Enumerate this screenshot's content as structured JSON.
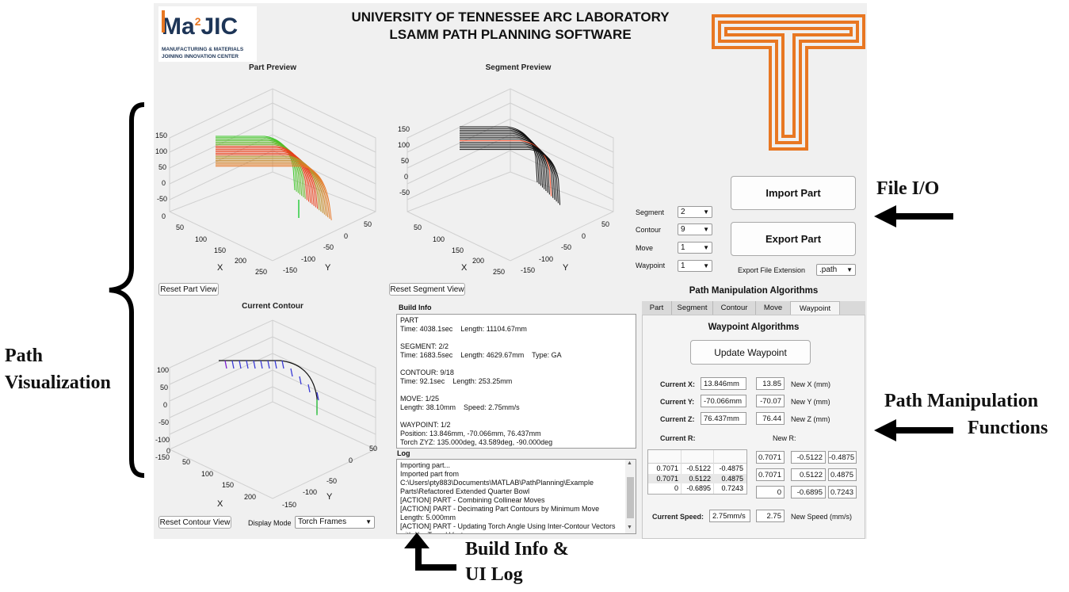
{
  "header": {
    "title_line1": "UNIVERSITY OF TENNESSEE ARC LABORATORY",
    "title_line2": "LSAMM PATH PLANNING SOFTWARE",
    "logo": {
      "main_text": "Ma",
      "superscript": "2",
      "suffix": "JIC",
      "tagline1": "MANUFACTURING & MATERIALS",
      "tagline2": "JOINING INNOVATION CENTER"
    },
    "brand_colors": {
      "orange": "#E87722",
      "navy": "#1d3557",
      "red": "#c0392b"
    }
  },
  "part_preview": {
    "title": "Part Preview",
    "z_ticks": [
      "150",
      "100",
      "50",
      "0",
      "-50"
    ],
    "extra_tick": "0",
    "x_ticks": [
      "50",
      "100",
      "150",
      "200",
      "250"
    ],
    "y_ticks": [
      "50",
      "0",
      "-50",
      "-100",
      "-150"
    ],
    "x_label": "X",
    "y_label": "Y",
    "reset_button": "Reset Part View"
  },
  "segment_preview": {
    "title": "Segment Preview",
    "z_ticks": [
      "150",
      "100",
      "50",
      "0",
      "-50"
    ],
    "x_ticks": [
      "50",
      "100",
      "150",
      "200",
      "250"
    ],
    "y_ticks": [
      "50",
      "0",
      "-50",
      "-100",
      "-150"
    ],
    "x_label": "X",
    "y_label": "Y",
    "reset_button": "Reset Segment View"
  },
  "current_contour": {
    "title": "Current Contour",
    "z_ticks": [
      "100",
      "50",
      "0",
      "-50",
      "-100",
      "-150"
    ],
    "x_ticks": [
      "0",
      "50",
      "100",
      "150",
      "200"
    ],
    "y_ticks": [
      "50",
      "0",
      "-50",
      "-100",
      "-150"
    ],
    "x_label": "X",
    "y_label": "Y",
    "reset_button": "Reset Contour View",
    "display_mode_label": "Display Mode",
    "display_mode_value": "Torch Frames"
  },
  "selectors": [
    {
      "label": "Segment",
      "value": "2"
    },
    {
      "label": "Contour",
      "value": "9"
    },
    {
      "label": "Move",
      "value": "1"
    },
    {
      "label": "Waypoint",
      "value": "1"
    }
  ],
  "file_io": {
    "import_button": "Import Part",
    "export_button": "Export Part",
    "export_ext_label": "Export File Extension",
    "export_ext_value": ".path"
  },
  "build_info": {
    "label": "Build Info",
    "lines": [
      "PART",
      "Time: 4038.1sec    Length: 11104.67mm",
      "",
      "SEGMENT: 2/2",
      "Time: 1683.5sec    Length: 4629.67mm    Type: GA",
      "",
      "CONTOUR: 9/18",
      "Time: 92.1sec    Length: 253.25mm",
      "",
      "MOVE: 1/25",
      "Length: 38.10mm    Speed: 2.75mm/s",
      "",
      "WAYPOINT: 1/2",
      "Position: 13.846mm, -70.066mm, 76.437mm",
      "Torch ZYZ: 135.000deg, 43.589deg, -90.000deg"
    ]
  },
  "log": {
    "label": "Log",
    "lines": [
      "Importing part...",
      "Imported part from",
      "C:\\Users\\pty883\\Documents\\MATLAB\\PathPlanning\\Example",
      "Parts\\Refactored Extended Quarter Bowl",
      "[ACTION] PART - Combining Collinear Moves",
      "[ACTION] PART - Decimating Part Contours by Minimum Move",
      "Length: 5.000mm",
      "[ACTION] PART - Updating Torch Angle Using Inter-Contour Vectors",
      "with X = Travel Vector"
    ]
  },
  "algorithms": {
    "title": "Path Manipulation Algorithms",
    "tabs": [
      "Part",
      "Segment",
      "Contour",
      "Move",
      "Waypoint"
    ],
    "active_tab": "Waypoint",
    "panel_title": "Waypoint Algorithms",
    "update_button": "Update Waypoint",
    "fields": [
      {
        "label": "Current X:",
        "current": "13.846mm",
        "new": "13.85",
        "new_label": "New X (mm)"
      },
      {
        "label": "Current Y:",
        "current": "-70.066mm",
        "new": "-70.07",
        "new_label": "New Y (mm)"
      },
      {
        "label": "Current Z:",
        "current": "76.437mm",
        "new": "76.44",
        "new_label": "New Z (mm)"
      }
    ],
    "current_r_label": "Current R:",
    "new_r_label": "New R:",
    "current_r": [
      [
        "0.7071",
        "-0.5122",
        "-0.4875"
      ],
      [
        "0.7071",
        "0.5122",
        "0.4875"
      ],
      [
        "0",
        "-0.6895",
        "0.7243"
      ]
    ],
    "new_r": [
      [
        "0.7071",
        "-0.5122",
        "-0.4875"
      ],
      [
        "0.7071",
        "0.5122",
        "0.4875"
      ],
      [
        "0",
        "-0.6895",
        "0.7243"
      ]
    ],
    "speed_label": "Current Speed:",
    "speed_current": "2.75mm/s",
    "speed_new": "2.75",
    "speed_new_label": "New Speed (mm/s)"
  },
  "annotations": {
    "path_vis_line1": "Path",
    "path_vis_line2": "Visualization",
    "file_io": "File I/O",
    "manip_line1": "Path Manipulation",
    "manip_line2": "Functions",
    "build_line1": "Build Info &",
    "build_line2": "UI Log"
  }
}
